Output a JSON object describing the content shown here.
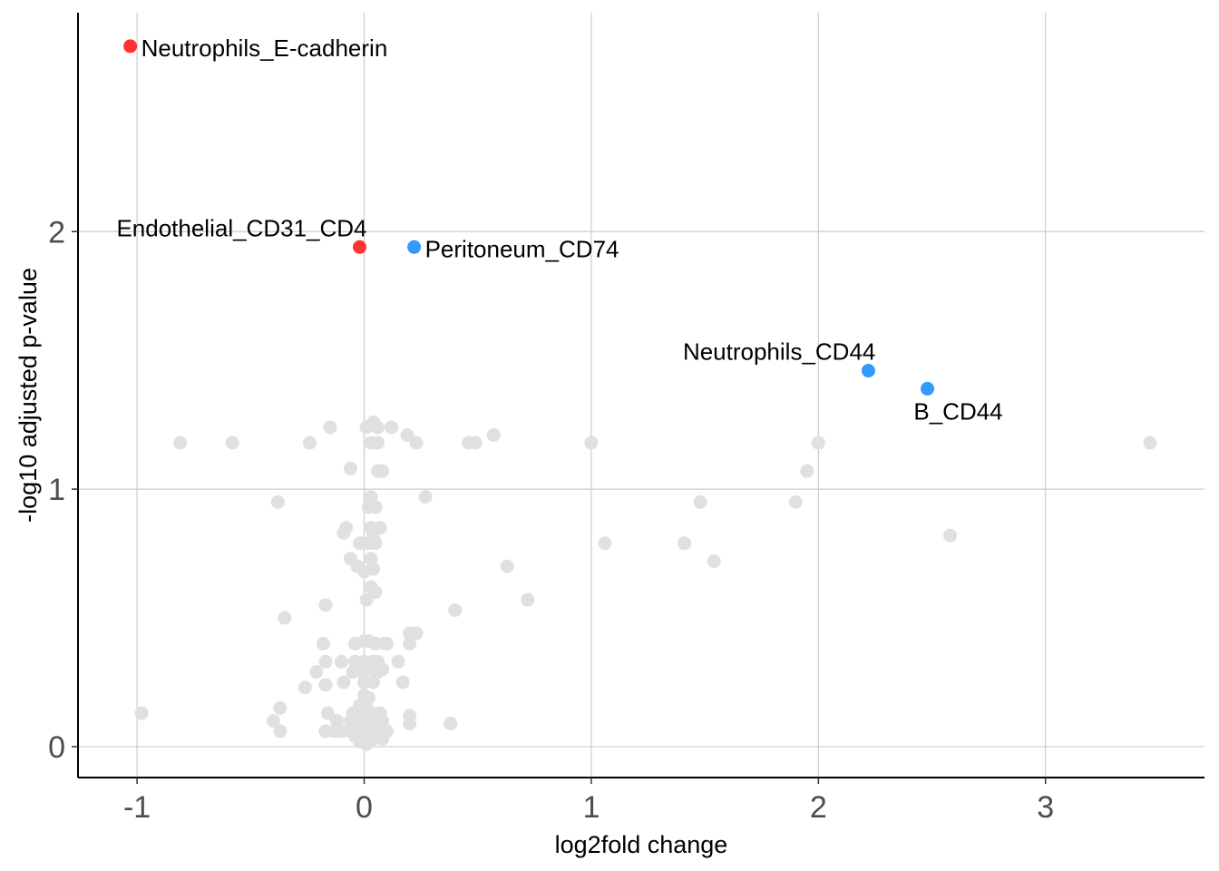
{
  "chart_data": {
    "type": "scatter",
    "title": "",
    "xlabel": "log2fold change",
    "ylabel": "-log10 adjusted p-value",
    "xlim": [
      -1.26,
      3.7
    ],
    "ylim": [
      -0.12,
      2.85
    ],
    "xticks": [
      -1,
      0,
      1,
      2,
      3
    ],
    "yticks": [
      0,
      1,
      2
    ],
    "xtick_labels": [
      "-1",
      "0",
      "1",
      "2",
      "3"
    ],
    "ytick_labels": [
      "0",
      "1",
      "2"
    ],
    "grid": true,
    "legend": "none",
    "colors": {
      "background": "#e0e0e0",
      "up": "#3399ff",
      "down": "#ff3333",
      "grid": "#cccccc"
    },
    "highlighted": [
      {
        "label": "Neutrophils_E-cadherin",
        "x": -1.03,
        "y": 2.72,
        "group": "down",
        "anchor": "right"
      },
      {
        "label": "Endothelial_CD31_CD4",
        "x": -0.02,
        "y": 1.94,
        "group": "down",
        "anchor": "above-left"
      },
      {
        "label": "Peritoneum_CD74",
        "x": 0.22,
        "y": 1.94,
        "group": "up",
        "anchor": "right"
      },
      {
        "label": "Neutrophils_CD44",
        "x": 2.22,
        "y": 1.46,
        "group": "up",
        "anchor": "above-left"
      },
      {
        "label": "B_CD44",
        "x": 2.48,
        "y": 1.39,
        "group": "up",
        "anchor": "below"
      }
    ],
    "background_points": [
      [
        -0.81,
        1.18
      ],
      [
        -0.58,
        1.18
      ],
      [
        -0.24,
        1.18
      ],
      [
        -0.15,
        1.24
      ],
      [
        -0.06,
        1.08
      ],
      [
        0.01,
        1.24
      ],
      [
        0.04,
        1.26
      ],
      [
        0.06,
        1.24
      ],
      [
        0.12,
        1.24
      ],
      [
        0.19,
        1.21
      ],
      [
        0.03,
        1.18
      ],
      [
        0.06,
        1.18
      ],
      [
        0.23,
        1.18
      ],
      [
        0.46,
        1.18
      ],
      [
        0.49,
        1.18
      ],
      [
        0.57,
        1.21
      ],
      [
        1.0,
        1.18
      ],
      [
        2.0,
        1.18
      ],
      [
        3.46,
        1.18
      ],
      [
        0.06,
        1.07
      ],
      [
        0.08,
        1.07
      ],
      [
        1.95,
        1.07
      ],
      [
        -0.38,
        0.95
      ],
      [
        0.03,
        0.97
      ],
      [
        0.02,
        0.93
      ],
      [
        0.05,
        0.93
      ],
      [
        0.27,
        0.97
      ],
      [
        1.48,
        0.95
      ],
      [
        1.9,
        0.95
      ],
      [
        -0.08,
        0.85
      ],
      [
        -0.09,
        0.83
      ],
      [
        0.03,
        0.85
      ],
      [
        0.07,
        0.85
      ],
      [
        0.04,
        0.82
      ],
      [
        2.58,
        0.82
      ],
      [
        -0.02,
        0.79
      ],
      [
        0.02,
        0.79
      ],
      [
        0.05,
        0.79
      ],
      [
        1.06,
        0.79
      ],
      [
        1.41,
        0.79
      ],
      [
        -0.06,
        0.73
      ],
      [
        -0.03,
        0.7
      ],
      [
        0.0,
        0.68
      ],
      [
        0.03,
        0.73
      ],
      [
        0.04,
        0.69
      ],
      [
        0.63,
        0.7
      ],
      [
        1.54,
        0.72
      ],
      [
        0.03,
        0.62
      ],
      [
        0.05,
        0.6
      ],
      [
        0.01,
        0.57
      ],
      [
        -0.17,
        0.55
      ],
      [
        0.72,
        0.57
      ],
      [
        0.4,
        0.53
      ],
      [
        -0.35,
        0.5
      ],
      [
        0.2,
        0.44
      ],
      [
        0.23,
        0.44
      ],
      [
        0.2,
        0.4
      ],
      [
        -0.18,
        0.4
      ],
      [
        -0.04,
        0.4
      ],
      [
        0.0,
        0.41
      ],
      [
        0.02,
        0.41
      ],
      [
        0.05,
        0.4
      ],
      [
        0.09,
        0.4
      ],
      [
        0.1,
        0.4
      ],
      [
        -0.17,
        0.33
      ],
      [
        -0.1,
        0.33
      ],
      [
        -0.04,
        0.33
      ],
      [
        0.0,
        0.33
      ],
      [
        0.04,
        0.33
      ],
      [
        0.06,
        0.33
      ],
      [
        0.15,
        0.33
      ],
      [
        -0.21,
        0.29
      ],
      [
        -0.05,
        0.29
      ],
      [
        -0.01,
        0.29
      ],
      [
        0.02,
        0.3
      ],
      [
        0.06,
        0.29
      ],
      [
        0.08,
        0.3
      ],
      [
        -0.09,
        0.25
      ],
      [
        -0.17,
        0.24
      ],
      [
        0.0,
        0.25
      ],
      [
        0.04,
        0.25
      ],
      [
        0.17,
        0.25
      ],
      [
        -0.26,
        0.23
      ],
      [
        0.0,
        0.2
      ],
      [
        0.02,
        0.19
      ],
      [
        -0.02,
        0.16
      ],
      [
        0.01,
        0.15
      ],
      [
        -0.37,
        0.15
      ],
      [
        -0.98,
        0.13
      ],
      [
        -0.16,
        0.13
      ],
      [
        -0.05,
        0.13
      ],
      [
        0.0,
        0.13
      ],
      [
        0.03,
        0.13
      ],
      [
        0.07,
        0.13
      ],
      [
        0.2,
        0.12
      ],
      [
        -0.4,
        0.1
      ],
      [
        -0.12,
        0.1
      ],
      [
        -0.06,
        0.1
      ],
      [
        -0.02,
        0.1
      ],
      [
        0.02,
        0.1
      ],
      [
        0.05,
        0.1
      ],
      [
        0.08,
        0.1
      ],
      [
        0.2,
        0.09
      ],
      [
        0.38,
        0.09
      ],
      [
        -0.37,
        0.06
      ],
      [
        -0.17,
        0.06
      ],
      [
        -0.13,
        0.06
      ],
      [
        -0.1,
        0.06
      ],
      [
        -0.06,
        0.06
      ],
      [
        -0.03,
        0.06
      ],
      [
        0.0,
        0.06
      ],
      [
        0.03,
        0.06
      ],
      [
        0.06,
        0.06
      ],
      [
        0.1,
        0.06
      ],
      [
        -0.04,
        0.04
      ],
      [
        0.0,
        0.03
      ],
      [
        0.04,
        0.03
      ],
      [
        0.08,
        0.03
      ],
      [
        -0.02,
        0.02
      ],
      [
        0.01,
        0.01
      ]
    ]
  }
}
